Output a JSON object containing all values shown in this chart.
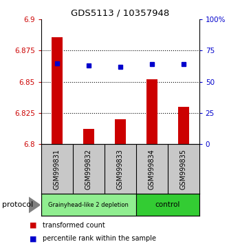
{
  "title": "GDS5113 / 10357948",
  "samples": [
    "GSM999831",
    "GSM999832",
    "GSM999833",
    "GSM999834",
    "GSM999835"
  ],
  "bar_values": [
    6.886,
    6.812,
    6.82,
    6.852,
    6.83
  ],
  "bar_base": 6.8,
  "blue_values": [
    65,
    63,
    62,
    64,
    64
  ],
  "ylim_left": [
    6.8,
    6.9
  ],
  "ylim_right": [
    0,
    100
  ],
  "yticks_left": [
    6.8,
    6.825,
    6.85,
    6.875,
    6.9
  ],
  "yticks_right": [
    0,
    25,
    50,
    75,
    100
  ],
  "bar_color": "#cc0000",
  "blue_color": "#0000cc",
  "group1_label": "Grainyhead-like 2 depletion",
  "group2_label": "control",
  "group1_color": "#90ee90",
  "group2_color": "#33cc33",
  "protocol_label": "protocol",
  "legend_red": "transformed count",
  "legend_blue": "percentile rank within the sample",
  "bg_color": "#ffffff",
  "grid_color": "#000000",
  "tick_color_left": "#cc0000",
  "tick_color_right": "#0000cc",
  "sample_bg": "#c8c8c8",
  "right_pct_label": "100%"
}
